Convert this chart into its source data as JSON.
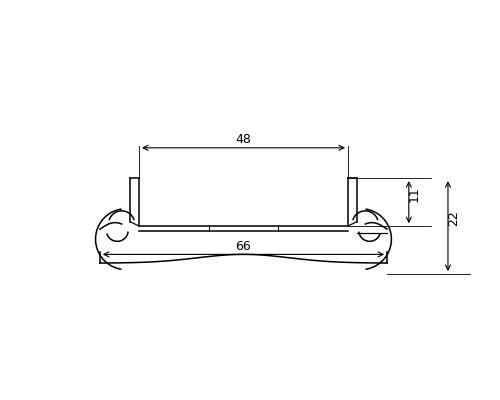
{
  "bg_color": "#ffffff",
  "line_color": "#000000",
  "fig_width": 5.0,
  "fig_height": 4.0,
  "dpi": 100,
  "iw": 24,
  "tw": 33,
  "ih": 11,
  "th": 22,
  "wt": 2.0,
  "dim_48_label": "48",
  "dim_66_label": "66",
  "dim_11_label": "11",
  "dim_22_label": "22"
}
